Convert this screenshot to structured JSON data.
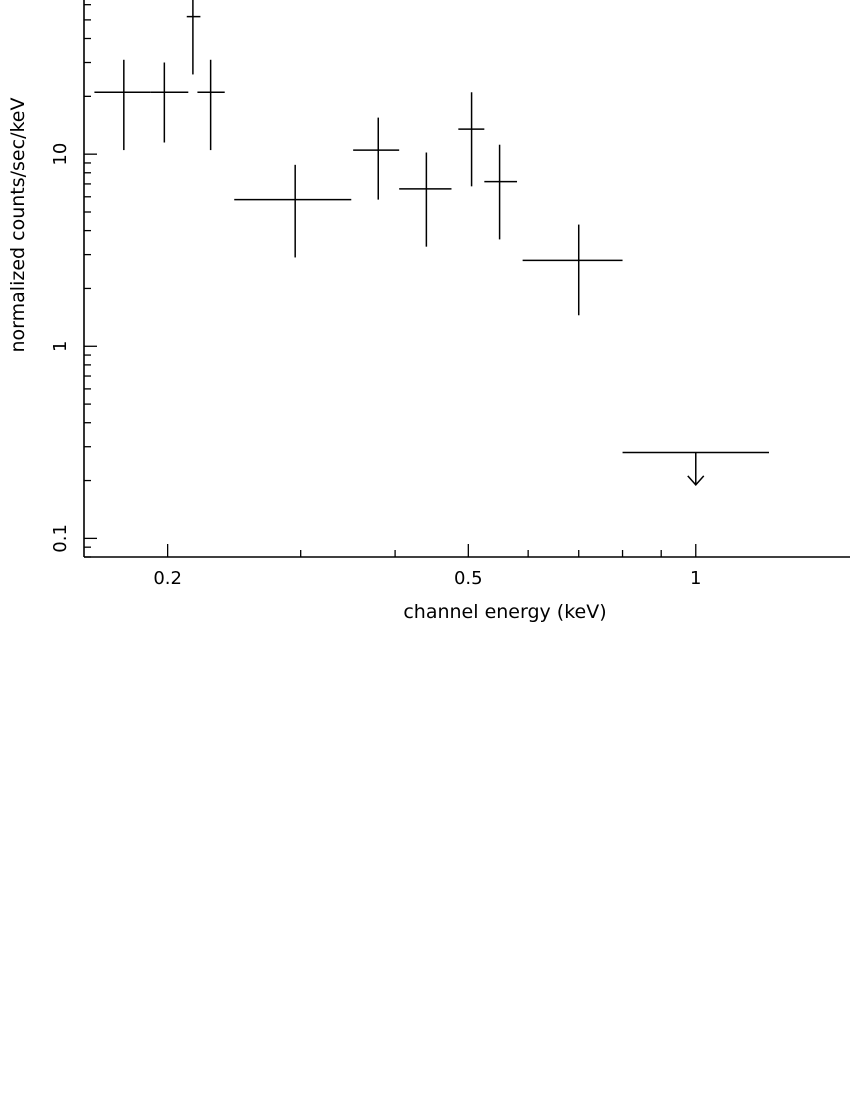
{
  "chart_data": {
    "type": "scatter",
    "title": "",
    "xlabel": "channel energy (keV)",
    "ylabel": "normalized counts/sec/keV",
    "xscale": "log",
    "yscale": "log",
    "xlim": [
      0.155,
      1.6
    ],
    "ylim": [
      0.08,
      65
    ],
    "grid": false,
    "legend": "none",
    "xticks": [
      {
        "value": 0.2,
        "label": "0.2"
      },
      {
        "value": 0.5,
        "label": "0.5"
      },
      {
        "value": 1,
        "label": "1"
      }
    ],
    "yticks": [
      {
        "value": 0.1,
        "label": "0.1"
      },
      {
        "value": 1,
        "label": "1"
      },
      {
        "value": 10,
        "label": "10"
      }
    ],
    "series": [
      {
        "style": "crosses",
        "points": [
          {
            "x": 0.175,
            "xlo": 0.16,
            "xhi": 0.19,
            "y": 21,
            "ylo": 10.5,
            "yhi": 31
          },
          {
            "x": 0.198,
            "xlo": 0.19,
            "xhi": 0.213,
            "y": 21,
            "ylo": 11.5,
            "yhi": 30
          },
          {
            "x": 0.216,
            "xlo": 0.212,
            "xhi": 0.221,
            "y": 52,
            "ylo": 26,
            "yhi": 64
          },
          {
            "x": 0.228,
            "xlo": 0.219,
            "xhi": 0.238,
            "y": 21,
            "ylo": 10.5,
            "yhi": 31
          },
          {
            "x": 0.295,
            "xlo": 0.245,
            "xhi": 0.35,
            "y": 5.8,
            "ylo": 2.9,
            "yhi": 8.8
          },
          {
            "x": 0.38,
            "xlo": 0.352,
            "xhi": 0.405,
            "y": 10.5,
            "ylo": 5.8,
            "yhi": 15.5
          },
          {
            "x": 0.44,
            "xlo": 0.405,
            "xhi": 0.475,
            "y": 6.6,
            "ylo": 3.3,
            "yhi": 10.2
          },
          {
            "x": 0.505,
            "xlo": 0.485,
            "xhi": 0.525,
            "y": 13.5,
            "ylo": 6.8,
            "yhi": 21
          },
          {
            "x": 0.55,
            "xlo": 0.525,
            "xhi": 0.58,
            "y": 7.2,
            "ylo": 3.6,
            "yhi": 11.2
          },
          {
            "x": 0.7,
            "xlo": 0.59,
            "xhi": 0.8,
            "y": 2.8,
            "ylo": 1.45,
            "yhi": 4.3
          }
        ]
      },
      {
        "style": "upper-limit",
        "points": [
          {
            "x": 1.0,
            "xlo": 0.8,
            "xhi": 1.25,
            "y": 0.28,
            "ylo": 0.19
          }
        ]
      }
    ]
  }
}
